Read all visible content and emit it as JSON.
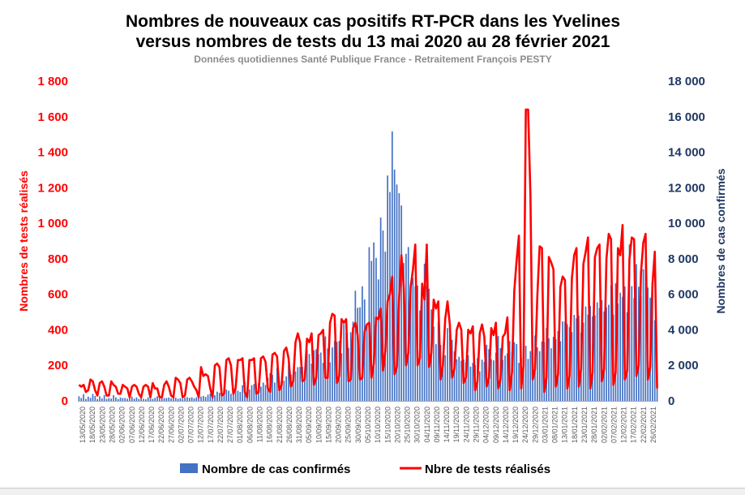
{
  "chart_data": {
    "type": "bar+line",
    "title_line1": "Nombres de nouveaux cas positifs RT-PCR dans les Yvelines",
    "title_line2": "versus nombres de tests du 13 mai 2020 au 28 février 2021",
    "subtitle": "Données quotidiennes Santé Publique France - Retraitement François PESTY",
    "y_left_label": "Nombres de tests réalisés",
    "y_right_label": "Nombres de cas confirmés",
    "y_left_ticks": [
      "0",
      "200",
      "400",
      "600",
      "800",
      "1 000",
      "1 200",
      "1 400",
      "1 600",
      "1 800"
    ],
    "y_right_ticks": [
      "0",
      "2 000",
      "4 000",
      "6 000",
      "8 000",
      "10 000",
      "12 000",
      "14 000",
      "16 000",
      "18 000"
    ],
    "y_left_lim": [
      0,
      1800
    ],
    "y_right_lim": [
      0,
      18000
    ],
    "x_start_date": "2020-05-13",
    "x_end_date": "2021-02-28",
    "x_tick_labels": [
      "13/05/2020",
      "18/05/2020",
      "23/05/2020",
      "28/05/2020",
      "02/06/2020",
      "07/06/2020",
      "12/06/2020",
      "17/06/2020",
      "22/06/2020",
      "27/06/2020",
      "02/07/2020",
      "07/07/2020",
      "12/07/2020",
      "17/07/2020",
      "22/07/2020",
      "27/07/2020",
      "01/08/2020",
      "06/08/2020",
      "11/08/2020",
      "16/08/2020",
      "21/08/2020",
      "26/08/2020",
      "31/08/2020",
      "05/09/2020",
      "10/09/2020",
      "15/09/2020",
      "20/09/2020",
      "25/09/2020",
      "30/09/2020",
      "05/10/2020",
      "10/10/2020",
      "15/10/2020",
      "20/10/2020",
      "25/10/2020",
      "30/10/2020",
      "04/11/2020",
      "09/11/2020",
      "14/11/2020",
      "19/11/2020",
      "24/11/2020",
      "29/11/2020",
      "04/12/2020",
      "09/12/2020",
      "14/12/2020",
      "19/12/2020",
      "24/12/2020",
      "29/12/2020",
      "03/01/2021",
      "08/01/2021",
      "13/01/2021",
      "18/01/2021",
      "23/01/2021",
      "28/01/2021",
      "02/02/2021",
      "07/02/2021",
      "12/02/2021",
      "17/02/2021",
      "22/02/2021",
      "26/02/2021"
    ],
    "legend": [
      "Nombre de cas confirmés",
      "Nbre de tests réalisés"
    ],
    "legend_position": "bottom",
    "grid": false,
    "colors": {
      "bars": "#4472c4",
      "line": "#ff0000",
      "left_axis": "#ff0000",
      "right_axis": "#1f3864"
    },
    "series": [
      {
        "name": "Nombre de cas confirmés",
        "axis": "right",
        "kind": "bar",
        "values": [
          260,
          160,
          380,
          110,
          240,
          170,
          390,
          280,
          100,
          260,
          140,
          330,
          110,
          160,
          130,
          320,
          200,
          100,
          190,
          160,
          160,
          120,
          190,
          240,
          120,
          190,
          110,
          160,
          120,
          90,
          200,
          130,
          110,
          170,
          260,
          130,
          200,
          160,
          160,
          190,
          150,
          220,
          180,
          120,
          150,
          120,
          190,
          210,
          170,
          200,
          140,
          200,
          240,
          240,
          280,
          220,
          350,
          410,
          390,
          320,
          520,
          460,
          460,
          500,
          640,
          570,
          400,
          580,
          730,
          580,
          500,
          880,
          1050,
          800,
          640,
          880,
          950,
          560,
          990,
          800,
          1030,
          900,
          1290,
          1560,
          1470,
          1030,
          1860,
          1100,
          1390,
          1140,
          1380,
          2010,
          1480,
          1240,
          1660,
          1900,
          1910,
          1910,
          1710,
          2870,
          2640,
          2100,
          2850,
          2910,
          2630,
          2720,
          2140,
          3630,
          2950,
          2170,
          3010,
          3380,
          3320,
          3380,
          2680,
          4330,
          3820,
          2980,
          3870,
          4460,
          6200,
          5240,
          5270,
          6450,
          5710,
          4220,
          8650,
          7880,
          8920,
          8050,
          6840,
          10320,
          9590,
          8400,
          12690,
          11760,
          15170,
          13020,
          12180,
          11690,
          11000,
          7760,
          8280,
          8660,
          6610,
          6920,
          6440,
          6490,
          5090,
          6430,
          7720,
          6510,
          6310,
          5150,
          4190,
          3190,
          4420,
          3150,
          2500,
          2570,
          4100,
          3690,
          3440,
          2780,
          2340,
          2480,
          2260,
          2330,
          2150,
          2570,
          1930,
          2140,
          2010,
          2410,
          1660,
          2320,
          2190,
          3160,
          2910,
          2350,
          2280,
          2720,
          3650,
          2970,
          2310,
          2550,
          2680,
          3370,
          2770,
          3300,
          3200,
          2140,
          2420,
          2910,
          3100,
          2360,
          2800,
          3280,
          3680,
          3020,
          2800,
          3350,
          3300,
          4110,
          3530,
          2960,
          3610,
          3480,
          3930,
          3360,
          4470,
          4460,
          4320,
          4150,
          3870,
          4840,
          4650,
          4790,
          3840,
          4410,
          5310,
          4860,
          5350,
          4750,
          4810,
          5550,
          5230,
          5680,
          5030,
          5260,
          5410,
          6500,
          4850,
          6620,
          5480,
          6090,
          5860,
          6440,
          4990,
          8810,
          6460,
          5790,
          7700,
          6430,
          5880,
          7410,
          8830,
          6380,
          5810,
          5960,
          4540,
          1060
        ]
      },
      {
        "name": "Nbre de tests réalisés",
        "axis": "left",
        "kind": "line",
        "values": [
          90,
          80,
          90,
          50,
          60,
          120,
          110,
          60,
          30,
          100,
          110,
          80,
          30,
          30,
          110,
          90,
          80,
          40,
          40,
          90,
          80,
          70,
          20,
          80,
          90,
          80,
          40,
          20,
          80,
          90,
          80,
          20,
          100,
          70,
          70,
          20,
          20,
          90,
          110,
          80,
          30,
          20,
          130,
          120,
          100,
          20,
          30,
          120,
          130,
          110,
          80,
          60,
          20,
          190,
          140,
          150,
          140,
          70,
          20,
          200,
          210,
          190,
          30,
          40,
          230,
          240,
          200,
          40,
          70,
          230,
          230,
          240,
          50,
          20,
          230,
          230,
          240,
          40,
          50,
          240,
          250,
          220,
          70,
          50,
          260,
          270,
          250,
          60,
          90,
          280,
          300,
          240,
          80,
          110,
          330,
          380,
          330,
          110,
          120,
          350,
          330,
          380,
          90,
          130,
          370,
          380,
          400,
          130,
          130,
          440,
          490,
          480,
          100,
          140,
          460,
          440,
          460,
          110,
          120,
          410,
          440,
          370,
          120,
          130,
          390,
          430,
          440,
          130,
          210,
          470,
          460,
          520,
          170,
          280,
          560,
          600,
          700,
          150,
          190,
          580,
          820,
          640,
          200,
          270,
          640,
          740,
          880,
          200,
          240,
          660,
          570,
          880,
          190,
          270,
          570,
          520,
          560,
          120,
          200,
          460,
          560,
          430,
          130,
          180,
          400,
          440,
          400,
          100,
          130,
          400,
          380,
          420,
          60,
          110,
          380,
          430,
          360,
          80,
          130,
          410,
          370,
          440,
          70,
          120,
          360,
          380,
          470,
          60,
          160,
          620,
          790,
          930,
          70,
          200,
          1640,
          1640,
          1160,
          120,
          180,
          590,
          870,
          860,
          50,
          130,
          810,
          780,
          740,
          80,
          150,
          640,
          700,
          680,
          70,
          140,
          690,
          820,
          860,
          80,
          180,
          770,
          840,
          920,
          70,
          160,
          810,
          860,
          880,
          110,
          180,
          800,
          940,
          910,
          90,
          160,
          860,
          820,
          990,
          120,
          170,
          800,
          920,
          910,
          140,
          200,
          720,
          890,
          940,
          120,
          190,
          660,
          840,
          70
        ]
      }
    ]
  }
}
